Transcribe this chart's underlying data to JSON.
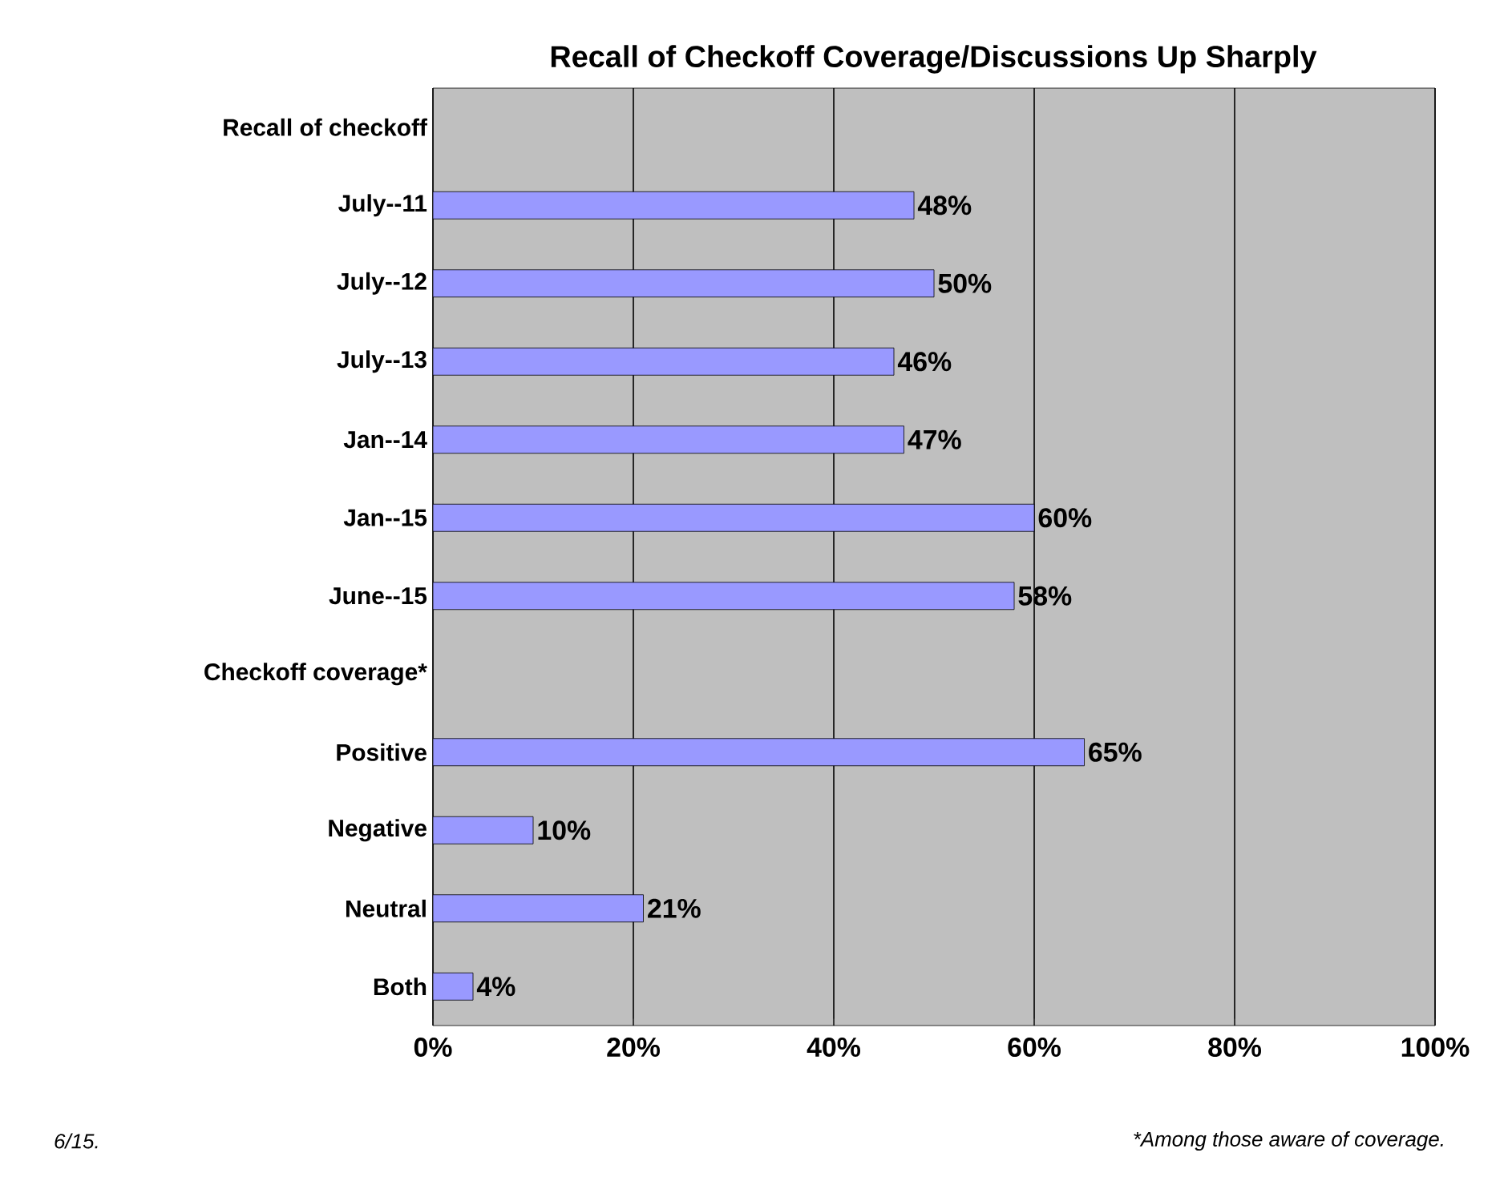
{
  "chart_data": {
    "type": "bar",
    "orientation": "horizontal",
    "title": "Recall of Checkoff Coverage/Discussions Up Sharply",
    "categories": [
      "Recall of checkoff",
      "July--11",
      "July--12",
      "July--13",
      "Jan--14",
      "Jan--15",
      "June--15",
      "Checkoff coverage*",
      "Positive",
      "Negative",
      "Neutral",
      "Both"
    ],
    "values": [
      null,
      48,
      50,
      46,
      47,
      60,
      58,
      null,
      65,
      10,
      21,
      4
    ],
    "value_labels": [
      null,
      "48%",
      "50%",
      "46%",
      "47%",
      "60%",
      "58%",
      null,
      "65%",
      "10%",
      "21%",
      "4%"
    ],
    "color": "#9999ff",
    "xlim": [
      0,
      100
    ],
    "xticks": [
      {
        "value": 0,
        "label": "0%"
      },
      {
        "value": 20,
        "label": "20%"
      },
      {
        "value": 40,
        "label": "40%"
      },
      {
        "value": 60,
        "label": "60%"
      },
      {
        "value": 80,
        "label": "80%"
      },
      {
        "value": 100,
        "label": "100%"
      }
    ],
    "grid": "x",
    "annotations": [
      "6/15.",
      "*Among those aware of coverage."
    ]
  }
}
